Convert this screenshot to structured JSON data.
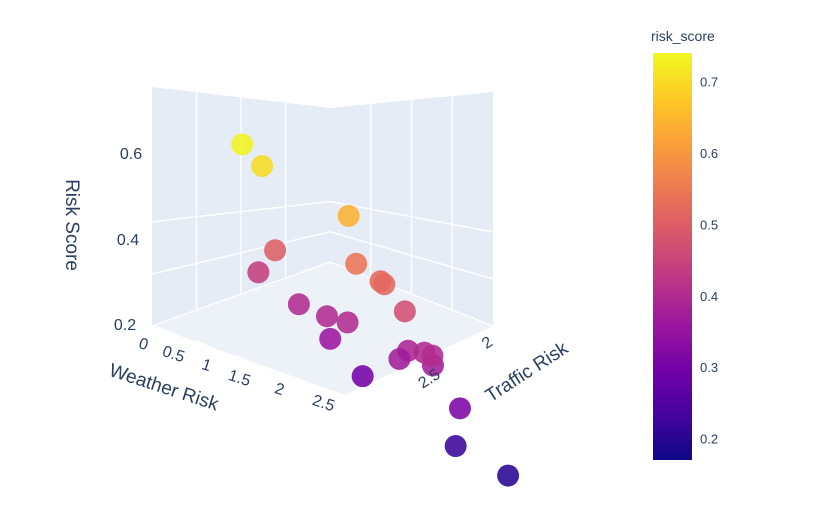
{
  "chart_data": {
    "type": "scatter3d",
    "axes": {
      "x": {
        "title": "Weather Risk",
        "ticks": [
          "0",
          "0.5",
          "1",
          "1.5",
          "2",
          "2.5"
        ]
      },
      "y": {
        "title": "Traffic Risk",
        "ticks": [
          "2",
          "2.5"
        ]
      },
      "z": {
        "title": "Risk Score",
        "ticks": [
          "0.2",
          "0.4",
          "0.6"
        ]
      }
    },
    "colorbar": {
      "title": "risk_score",
      "ticks": [
        "0.2",
        "0.3",
        "0.4",
        "0.5",
        "0.6",
        "0.7"
      ],
      "range": [
        0.17,
        0.74
      ],
      "colorscale": [
        "#0d0887",
        "#46039f",
        "#7201a8",
        "#9c179e",
        "#bd3786",
        "#d8576b",
        "#ed7953",
        "#fb9f3a",
        "#fdca26",
        "#f0f921"
      ]
    },
    "grid": true,
    "points": [
      {
        "x": 0.1,
        "y": 2.2,
        "z": 0.73
      },
      {
        "x": 0.1,
        "y": 2.3,
        "z": 0.7
      },
      {
        "x": 0.2,
        "y": 2.6,
        "z": 0.36
      },
      {
        "x": 0.3,
        "y": 2.2,
        "z": 0.44
      },
      {
        "x": 0.6,
        "y": 2.6,
        "z": 0.3
      },
      {
        "x": 0.8,
        "y": 2.2,
        "z": 0.4
      },
      {
        "x": 0.9,
        "y": 2.3,
        "z": 0.4
      },
      {
        "x": 1.0,
        "y": 2.0,
        "z": 0.5
      },
      {
        "x": 1.3,
        "y": 2.5,
        "z": 0.37
      },
      {
        "x": 1.4,
        "y": 2.2,
        "z": 0.4
      },
      {
        "x": 1.5,
        "y": 2.7,
        "z": 0.22
      },
      {
        "x": 1.8,
        "y": 2.6,
        "z": 0.31
      },
      {
        "x": 1.9,
        "y": 2.8,
        "z": 0.2
      },
      {
        "x": 1.9,
        "y": 2.3,
        "z": 0.39
      },
      {
        "x": 2.0,
        "y": 2.0,
        "z": 0.54
      },
      {
        "x": 2.1,
        "y": 2.1,
        "z": 0.52
      },
      {
        "x": 2.1,
        "y": 2.3,
        "z": 0.4
      },
      {
        "x": 2.2,
        "y": 2.3,
        "z": 0.4
      },
      {
        "x": 2.3,
        "y": 2.0,
        "z": 0.52
      },
      {
        "x": 2.4,
        "y": 1.8,
        "z": 0.64
      },
      {
        "x": 2.6,
        "y": 2.0,
        "z": 0.47
      },
      {
        "x": 2.7,
        "y": 2.1,
        "z": 0.37
      }
    ]
  }
}
